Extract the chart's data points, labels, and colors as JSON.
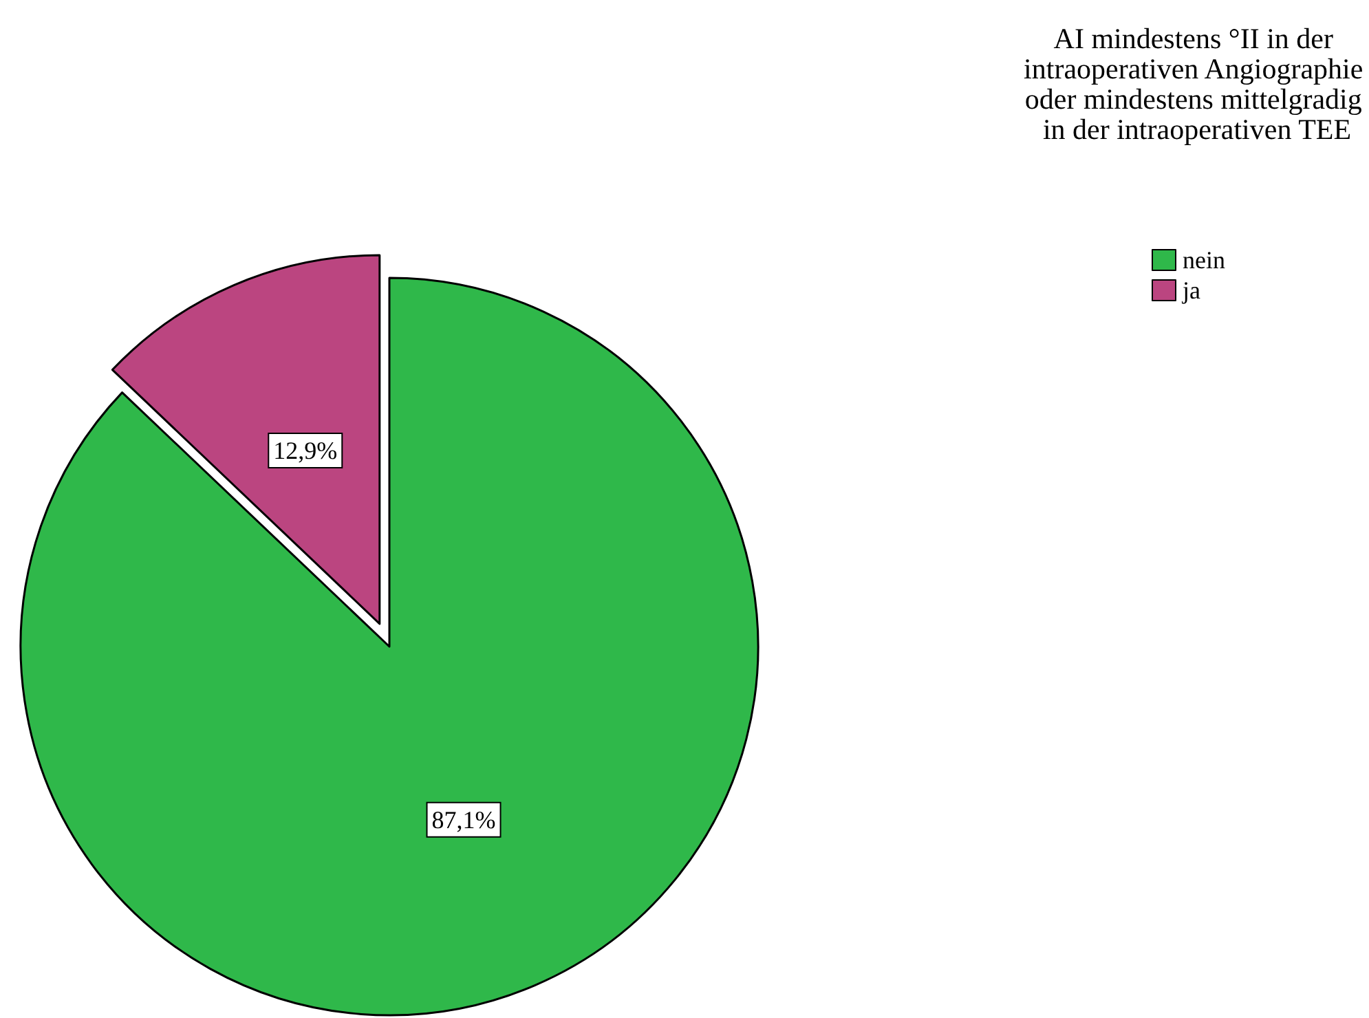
{
  "chart_data": {
    "type": "pie",
    "legend_title": "AI mindestens °II in der intraoperativen Angiographie oder mindestens mittelgradig in der intraoperativen TEE",
    "categories": [
      "nein",
      "ja"
    ],
    "values": [
      87.1,
      12.9
    ],
    "colors": [
      "#2fb84a",
      "#bb4580"
    ],
    "value_labels": [
      "87,1%",
      "12,9%"
    ],
    "legend": "top right"
  }
}
